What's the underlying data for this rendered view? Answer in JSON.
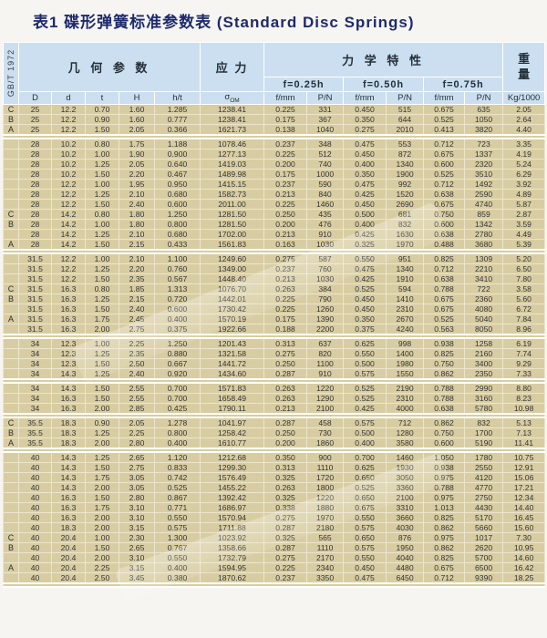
{
  "title": "表1 碟形弹簧标准参数表 (Standard Disc Springs)",
  "standard_label": "GB/T 1972",
  "colors": {
    "page_bg": "#f7f5f1",
    "title_color": "#1d2a6e",
    "header_bg": "#cbdff0",
    "row_bg": "#d8cda2",
    "grid": "#ece5cc",
    "text": "#333333"
  },
  "table": {
    "header": {
      "geometry": "几 何 参 数",
      "stress": "应 力",
      "mechanical": "力 学 特 性",
      "weight_top": "重",
      "weight_bottom": "量",
      "deflection_labels": [
        "f=0.25h",
        "f=0.50h",
        "f=0.75h"
      ],
      "sigma": "σ",
      "sigma_sub": "OM",
      "col_D": "D",
      "col_d": "d",
      "col_t": "t",
      "col_H": "H",
      "col_ht": "h/t",
      "col_f": "f/mm",
      "col_p": "P/N",
      "col_weight": "Kg/1000"
    },
    "rows": [
      {
        "label": "C",
        "cells": [
          "25",
          "12.2",
          "0.70",
          "1.60",
          "1.285",
          "1238.41",
          "0.225",
          "331",
          "0.450",
          "515",
          "0.675",
          "635",
          "2.05"
        ]
      },
      {
        "label": "B",
        "cells": [
          "25",
          "12.2",
          "0.90",
          "1.60",
          "0.777",
          "1238.41",
          "0.175",
          "367",
          "0.350",
          "644",
          "0.525",
          "1050",
          "2.64"
        ]
      },
      {
        "label": "A",
        "cells": [
          "25",
          "12.2",
          "1.50",
          "2.05",
          "0.366",
          "1621.73",
          "0.138",
          "1040",
          "0.275",
          "2010",
          "0.413",
          "3820",
          "4.40"
        ]
      },
      {
        "separator": true
      },
      {
        "label": "",
        "cells": [
          "28",
          "10.2",
          "0.80",
          "1.75",
          "1.188",
          "1078.46",
          "0.237",
          "348",
          "0.475",
          "553",
          "0.712",
          "723",
          "3.35"
        ]
      },
      {
        "label": "",
        "cells": [
          "28",
          "10.2",
          "1.00",
          "1.90",
          "0.900",
          "1277.13",
          "0.225",
          "512",
          "0.450",
          "872",
          "0.675",
          "1337",
          "4.19"
        ]
      },
      {
        "label": "",
        "cells": [
          "28",
          "10.2",
          "1.25",
          "2.05",
          "0.640",
          "1419.03",
          "0.200",
          "740",
          "0.400",
          "1340",
          "0.600",
          "2320",
          "5.24"
        ]
      },
      {
        "label": "",
        "cells": [
          "28",
          "10.2",
          "1.50",
          "2.20",
          "0.467",
          "1489.98",
          "0.175",
          "1000",
          "0.350",
          "1900",
          "0.525",
          "3510",
          "6.29"
        ]
      },
      {
        "label": "",
        "cells": [
          "28",
          "12.2",
          "1.00",
          "1.95",
          "0.950",
          "1415.15",
          "0.237",
          "590",
          "0.475",
          "992",
          "0.712",
          "1492",
          "3.92"
        ]
      },
      {
        "label": "",
        "cells": [
          "28",
          "12.2",
          "1.25",
          "2.10",
          "0.680",
          "1582.73",
          "0.213",
          "840",
          "0.425",
          "1520",
          "0.638",
          "2590",
          "4.89"
        ]
      },
      {
        "label": "",
        "cells": [
          "28",
          "12.2",
          "1.50",
          "2.40",
          "0.600",
          "2011.00",
          "0.225",
          "1460",
          "0.450",
          "2690",
          "0.675",
          "4740",
          "5.87"
        ]
      },
      {
        "label": "C",
        "cells": [
          "28",
          "14.2",
          "0.80",
          "1.80",
          "1.250",
          "1281.50",
          "0.250",
          "435",
          "0.500",
          "681",
          "0.750",
          "859",
          "2.87"
        ]
      },
      {
        "label": "B",
        "cells": [
          "28",
          "14.2",
          "1.00",
          "1.80",
          "0.800",
          "1281.50",
          "0.200",
          "476",
          "0.400",
          "832",
          "0.600",
          "1342",
          "3.59"
        ]
      },
      {
        "label": "",
        "cells": [
          "28",
          "14.2",
          "1.25",
          "2.10",
          "0.680",
          "1702.00",
          "0.213",
          "910",
          "0.425",
          "1630",
          "0.638",
          "2780",
          "4.49"
        ]
      },
      {
        "label": "A",
        "cells": [
          "28",
          "14.2",
          "1.50",
          "2.15",
          "0.433",
          "1561.83",
          "0.163",
          "1030",
          "0.325",
          "1970",
          "0.488",
          "3680",
          "5.39"
        ]
      },
      {
        "separator": true
      },
      {
        "label": "",
        "cells": [
          "31.5",
          "12.2",
          "1.00",
          "2.10",
          "1.100",
          "1249.60",
          "0.275",
          "587",
          "0.550",
          "951",
          "0.825",
          "1309",
          "5.20"
        ]
      },
      {
        "label": "",
        "cells": [
          "31.5",
          "12.2",
          "1.25",
          "2.20",
          "0.760",
          "1349.00",
          "0.237",
          "760",
          "0.475",
          "1340",
          "0.712",
          "2210",
          "6.50"
        ]
      },
      {
        "label": "",
        "cells": [
          "31.5",
          "12.2",
          "1.50",
          "2.35",
          "0.567",
          "1448.40",
          "0.213",
          "1030",
          "0.425",
          "1910",
          "0.638",
          "3410",
          "7.80"
        ]
      },
      {
        "label": "C",
        "cells": [
          "31.5",
          "16.3",
          "0.80",
          "1.85",
          "1.313",
          "1076.70",
          "0.263",
          "384",
          "0.525",
          "594",
          "0.788",
          "722",
          "3.58"
        ]
      },
      {
        "label": "B",
        "cells": [
          "31.5",
          "16.3",
          "1.25",
          "2.15",
          "0.720",
          "1442.01",
          "0.225",
          "790",
          "0.450",
          "1410",
          "0.675",
          "2360",
          "5.60"
        ]
      },
      {
        "label": "",
        "cells": [
          "31.5",
          "16.3",
          "1.50",
          "2.40",
          "0.600",
          "1730.42",
          "0.225",
          "1260",
          "0.450",
          "2310",
          "0.675",
          "4080",
          "6.72"
        ]
      },
      {
        "label": "A",
        "cells": [
          "31.5",
          "16.3",
          "1.75",
          "2.45",
          "0.400",
          "1570.19",
          "0.175",
          "1390",
          "0.350",
          "2670",
          "0.525",
          "5040",
          "7.84"
        ]
      },
      {
        "label": "",
        "cells": [
          "31.5",
          "16.3",
          "2.00",
          "2.75",
          "0.375",
          "1922.66",
          "0.188",
          "2200",
          "0.375",
          "4240",
          "0.563",
          "8050",
          "8.96"
        ]
      },
      {
        "separator": true
      },
      {
        "label": "",
        "cells": [
          "34",
          "12.3",
          "1.00",
          "2.25",
          "1.250",
          "1201.43",
          "0.313",
          "637",
          "0.625",
          "998",
          "0.938",
          "1258",
          "6.19"
        ]
      },
      {
        "label": "",
        "cells": [
          "34",
          "12.3",
          "1.25",
          "2.35",
          "0.880",
          "1321.58",
          "0.275",
          "820",
          "0.550",
          "1400",
          "0.825",
          "2160",
          "7.74"
        ]
      },
      {
        "label": "",
        "cells": [
          "34",
          "12.3",
          "1.50",
          "2.50",
          "0.667",
          "1441.72",
          "0.250",
          "1100",
          "0.500",
          "1980",
          "0.750",
          "3400",
          "9.29"
        ]
      },
      {
        "label": "",
        "cells": [
          "34",
          "14.3",
          "1.25",
          "2.40",
          "0.920",
          "1434.60",
          "0.287",
          "910",
          "0.575",
          "1550",
          "0.862",
          "2350",
          "7.33"
        ]
      },
      {
        "separator": true
      },
      {
        "label": "",
        "cells": [
          "34",
          "14.3",
          "1.50",
          "2.55",
          "0.700",
          "1571.83",
          "0.263",
          "1220",
          "0.525",
          "2190",
          "0.788",
          "2990",
          "8.80"
        ]
      },
      {
        "label": "",
        "cells": [
          "34",
          "16.3",
          "1.50",
          "2.55",
          "0.700",
          "1658.49",
          "0.263",
          "1290",
          "0.525",
          "2310",
          "0.788",
          "3160",
          "8.23"
        ]
      },
      {
        "label": "",
        "cells": [
          "34",
          "16.3",
          "2.00",
          "2.85",
          "0.425",
          "1790.11",
          "0.213",
          "2100",
          "0.425",
          "4000",
          "0.638",
          "5780",
          "10.98"
        ]
      },
      {
        "separator": true
      },
      {
        "label": "C",
        "cells": [
          "35.5",
          "18.3",
          "0.90",
          "2.05",
          "1.278",
          "1041.97",
          "0.287",
          "458",
          "0.575",
          "712",
          "0.862",
          "832",
          "5.13"
        ]
      },
      {
        "label": "B",
        "cells": [
          "35.5",
          "18.3",
          "1.25",
          "2.25",
          "0.800",
          "1258.42",
          "0.250",
          "730",
          "0.500",
          "1280",
          "0.750",
          "1700",
          "7.13"
        ]
      },
      {
        "label": "A",
        "cells": [
          "35.5",
          "18.3",
          "2.00",
          "2.80",
          "0.400",
          "1610.77",
          "0.200",
          "1860",
          "0.400",
          "3580",
          "0.600",
          "5190",
          "11.41"
        ]
      },
      {
        "separator": true
      },
      {
        "label": "",
        "cells": [
          "40",
          "14.3",
          "1.25",
          "2.65",
          "1.120",
          "1212.68",
          "0.350",
          "900",
          "0.700",
          "1460",
          "1.050",
          "1780",
          "10.75"
        ]
      },
      {
        "label": "",
        "cells": [
          "40",
          "14.3",
          "1.50",
          "2.75",
          "0.833",
          "1299.30",
          "0.313",
          "1110",
          "0.625",
          "1930",
          "0.938",
          "2550",
          "12.91"
        ]
      },
      {
        "label": "",
        "cells": [
          "40",
          "14.3",
          "1.75",
          "3.05",
          "0.742",
          "1576.49",
          "0.325",
          "1720",
          "0.650",
          "3050",
          "0.975",
          "4120",
          "15.06"
        ]
      },
      {
        "label": "",
        "cells": [
          "40",
          "14.3",
          "2.00",
          "3.05",
          "0.525",
          "1455.22",
          "0.263",
          "1800",
          "0.525",
          "3360",
          "0.788",
          "4770",
          "17.21"
        ]
      },
      {
        "label": "",
        "cells": [
          "40",
          "16.3",
          "1.50",
          "2.80",
          "0.867",
          "1392.42",
          "0.325",
          "1220",
          "0.650",
          "2100",
          "0.975",
          "2750",
          "12.34"
        ]
      },
      {
        "label": "",
        "cells": [
          "40",
          "16.3",
          "1.75",
          "3.10",
          "0.771",
          "1686.97",
          "0.338",
          "1880",
          "0.675",
          "3310",
          "1.013",
          "4430",
          "14.40"
        ]
      },
      {
        "label": "",
        "cells": [
          "40",
          "16.3",
          "2.00",
          "3.10",
          "0.550",
          "1570.94",
          "0.275",
          "1970",
          "0.550",
          "3660",
          "0.825",
          "5170",
          "16.45"
        ]
      },
      {
        "label": "",
        "cells": [
          "40",
          "18.3",
          "2.00",
          "3.15",
          "0.575",
          "1711.88",
          "0.287",
          "2180",
          "0.575",
          "4030",
          "0.862",
          "5660",
          "15.60"
        ]
      },
      {
        "label": "C",
        "cells": [
          "40",
          "20.4",
          "1.00",
          "2.30",
          "1.300",
          "1023.92",
          "0.325",
          "565",
          "0.650",
          "876",
          "0.975",
          "1017",
          "7.30"
        ]
      },
      {
        "label": "B",
        "cells": [
          "40",
          "20.4",
          "1.50",
          "2.65",
          "0.767",
          "1358.66",
          "0.287",
          "1110",
          "0.575",
          "1950",
          "0.862",
          "2620",
          "10.95"
        ]
      },
      {
        "label": "",
        "cells": [
          "40",
          "20.4",
          "2.00",
          "3.10",
          "0.550",
          "1732.79",
          "0.275",
          "2170",
          "0.550",
          "4040",
          "0.825",
          "5700",
          "14.60"
        ]
      },
      {
        "label": "A",
        "cells": [
          "40",
          "20.4",
          "2.25",
          "3.15",
          "0.400",
          "1594.95",
          "0.225",
          "2340",
          "0.450",
          "4480",
          "0.675",
          "6500",
          "16.42"
        ]
      },
      {
        "label": "",
        "cells": [
          "40",
          "20.4",
          "2.50",
          "3.45",
          "0.380",
          "1870.62",
          "0.237",
          "3350",
          "0.475",
          "6450",
          "0.712",
          "9390",
          "18.25"
        ]
      },
      {
        "separator": true
      }
    ]
  }
}
